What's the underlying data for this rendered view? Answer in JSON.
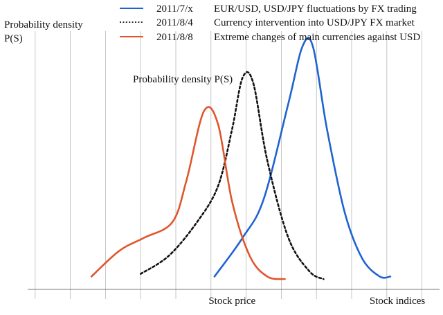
{
  "chart_data": {
    "type": "line",
    "title": "",
    "ylabel_lines": [
      "Probability density",
      "P(S)"
    ],
    "annotation": "Probability density P(S)",
    "xtick_labels": [
      {
        "label": "Stock price",
        "x": 6.6
      },
      {
        "label": "Stock indices",
        "x": 11.3
      }
    ],
    "xlim": [
      0,
      12.5
    ],
    "ylim": [
      0,
      1
    ],
    "grid": "vertical",
    "grid_x": [
      1,
      2,
      3,
      4,
      5,
      6,
      7,
      8,
      9,
      10,
      11,
      12
    ],
    "legend_position": "top-right",
    "series": [
      {
        "date": "2011/7/x",
        "description": "EUR/USD, USD/JPY fluctuations by FX trading",
        "color": "#1f63d0",
        "dash": "solid",
        "points": [
          [
            6.1,
            0.05
          ],
          [
            6.9,
            0.2
          ],
          [
            7.5,
            0.35
          ],
          [
            8.2,
            0.72
          ],
          [
            8.6,
            0.94
          ],
          [
            8.9,
            0.94
          ],
          [
            9.3,
            0.62
          ],
          [
            9.8,
            0.3
          ],
          [
            10.3,
            0.12
          ],
          [
            10.8,
            0.05
          ],
          [
            11.1,
            0.05
          ]
        ]
      },
      {
        "date": "2011/8/4",
        "description": "Currency intervention into USD/JPY FX market",
        "color": "#111111",
        "dash": "dotted",
        "points": [
          [
            4.0,
            0.06
          ],
          [
            4.8,
            0.13
          ],
          [
            5.6,
            0.26
          ],
          [
            6.2,
            0.4
          ],
          [
            6.6,
            0.62
          ],
          [
            6.9,
            0.82
          ],
          [
            7.2,
            0.8
          ],
          [
            7.6,
            0.5
          ],
          [
            8.2,
            0.2
          ],
          [
            8.8,
            0.07
          ],
          [
            9.2,
            0.04
          ]
        ]
      },
      {
        "date": "2011/8/8",
        "description": "Extreme changes of main currencies against USD",
        "color": "#e0552c",
        "dash": "solid",
        "points": [
          [
            2.6,
            0.05
          ],
          [
            3.4,
            0.15
          ],
          [
            4.1,
            0.2
          ],
          [
            4.9,
            0.26
          ],
          [
            5.3,
            0.42
          ],
          [
            5.8,
            0.69
          ],
          [
            6.2,
            0.64
          ],
          [
            6.6,
            0.34
          ],
          [
            7.1,
            0.13
          ],
          [
            7.6,
            0.05
          ],
          [
            8.1,
            0.04
          ]
        ]
      }
    ]
  }
}
